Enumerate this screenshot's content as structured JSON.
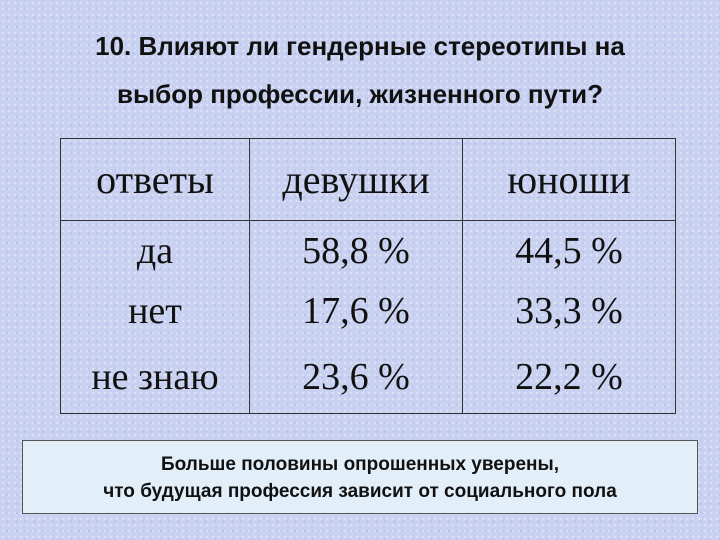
{
  "title": {
    "lines": [
      "10. Влияют ли гендерные стереотипы на",
      "выбор профессии, жизненного пути?"
    ]
  },
  "table": {
    "header": [
      "ответы",
      "девушки",
      "юноши"
    ],
    "rows": [
      [
        "да",
        "58,8 %",
        "44,5 %"
      ],
      [
        "нет",
        "17,6 %",
        "33,3 %"
      ],
      [
        "не знаю",
        "23,6 %",
        "22,2 %"
      ]
    ]
  },
  "conclusion": {
    "lines": [
      "Больше половины опрошенных уверены,",
      "что будущая профессия зависит от социального пола"
    ]
  }
}
